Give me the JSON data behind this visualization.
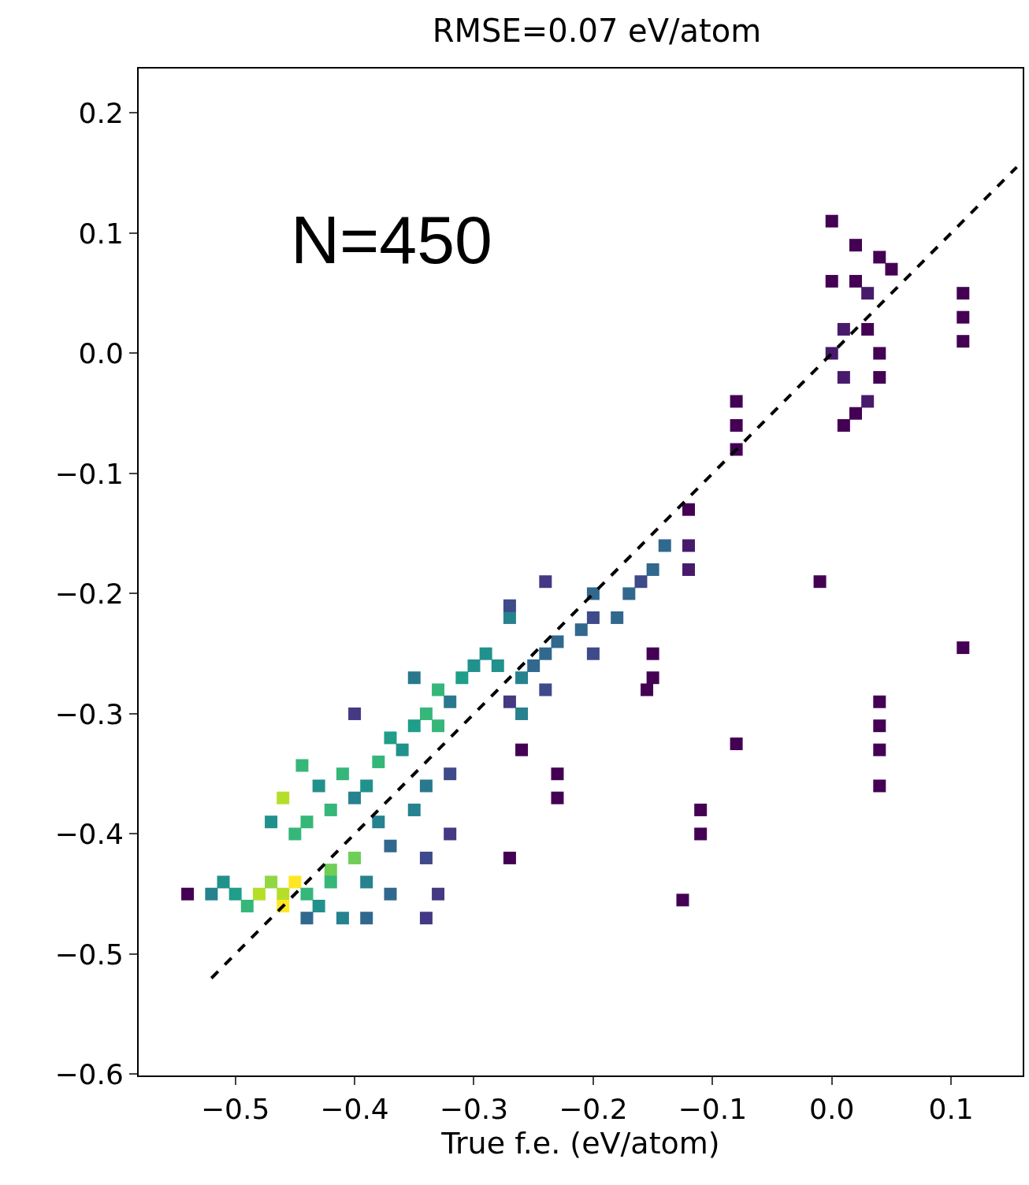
{
  "chart_data": {
    "type": "scatter",
    "title": "RMSE=0.07 eV/atom",
    "xlabel": "True f.e. (eV/atom)",
    "annotations": [
      "N=450"
    ],
    "xlim": [
      -0.581,
      0.16
    ],
    "ylim": [
      -0.601,
      0.237
    ],
    "xticks": [
      -0.5,
      -0.4,
      -0.3,
      -0.2,
      -0.1,
      {
        "value": 0,
        "label": "0.0"
      },
      0.1
    ],
    "yticks": [
      -0.6,
      -0.5,
      -0.4,
      -0.3,
      -0.2,
      -0.1,
      {
        "value": 0,
        "label": "0.0"
      },
      0.1,
      0.2
    ],
    "grid": false,
    "series": [
      {
        "marker": "square",
        "x": [
          0.0,
          0.0,
          0.02,
          0.02,
          0.04,
          0.05,
          0.03,
          0.0,
          0.01,
          0.01,
          0.03,
          0.04,
          0.03,
          0.02,
          0.04,
          0.01,
          0.11,
          0.11,
          0.11,
          -0.08,
          -0.08,
          -0.08,
          -0.12,
          -0.12,
          -0.12,
          -0.01,
          0.11,
          0.04,
          0.04,
          0.04,
          0.04,
          -0.08,
          -0.11,
          -0.11,
          -0.125,
          -0.27,
          -0.26,
          -0.23,
          -0.23,
          -0.15,
          -0.15,
          -0.155,
          -0.14,
          -0.15,
          -0.16,
          -0.17,
          -0.18,
          -0.2,
          -0.2,
          -0.21,
          -0.2,
          -0.24,
          -0.24,
          -0.25,
          -0.23,
          -0.26,
          -0.24,
          -0.27,
          -0.27,
          -0.26,
          -0.28,
          -0.29,
          -0.27,
          -0.3,
          -0.31,
          -0.32,
          -0.33,
          -0.34,
          -0.35,
          -0.36,
          -0.37,
          -0.35,
          -0.33,
          -0.38,
          -0.39,
          -0.4,
          -0.41,
          -0.42,
          -0.43,
          -0.44,
          -0.4,
          -0.38,
          -0.37,
          -0.35,
          -0.34,
          -0.32,
          -0.32,
          -0.34,
          -0.33,
          -0.34,
          -0.37,
          -0.39,
          -0.39,
          -0.4,
          -0.42,
          -0.45,
          -0.47,
          -0.46,
          -0.47,
          -0.46,
          -0.45,
          -0.48,
          -0.5,
          -0.52,
          -0.51,
          -0.54,
          -0.44,
          -0.43,
          -0.41,
          -0.42,
          -0.44,
          -0.49,
          -0.46,
          -0.444
        ],
        "values": [
          0.11,
          0.06,
          0.09,
          0.06,
          0.08,
          0.07,
          0.05,
          0.0,
          -0.02,
          -0.06,
          -0.04,
          0.0,
          0.02,
          -0.05,
          -0.02,
          0.02,
          0.05,
          0.03,
          0.01,
          -0.04,
          -0.06,
          -0.08,
          -0.13,
          -0.16,
          -0.18,
          -0.19,
          -0.245,
          -0.29,
          -0.31,
          -0.33,
          -0.36,
          -0.325,
          -0.38,
          -0.4,
          -0.455,
          -0.42,
          -0.33,
          -0.35,
          -0.37,
          -0.25,
          -0.27,
          -0.28,
          -0.16,
          -0.18,
          -0.19,
          -0.2,
          -0.22,
          -0.2,
          -0.22,
          -0.23,
          -0.25,
          -0.19,
          -0.25,
          -0.26,
          -0.24,
          -0.27,
          -0.28,
          -0.29,
          -0.22,
          -0.3,
          -0.26,
          -0.25,
          -0.21,
          -0.26,
          -0.27,
          -0.29,
          -0.28,
          -0.3,
          -0.31,
          -0.33,
          -0.32,
          -0.27,
          -0.31,
          -0.34,
          -0.36,
          -0.37,
          -0.35,
          -0.38,
          -0.36,
          -0.39,
          -0.3,
          -0.39,
          -0.41,
          -0.38,
          -0.36,
          -0.35,
          -0.4,
          -0.42,
          -0.45,
          -0.47,
          -0.45,
          -0.47,
          -0.44,
          -0.42,
          -0.43,
          -0.4,
          -0.39,
          -0.37,
          -0.44,
          -0.45,
          -0.44,
          -0.45,
          -0.45,
          -0.45,
          -0.44,
          -0.45,
          -0.45,
          -0.46,
          -0.47,
          -0.44,
          -0.47,
          -0.46,
          -0.46,
          -0.343
        ],
        "colors": [
          "#440154",
          "#440154",
          "#440154",
          "#440154",
          "#440154",
          "#440154",
          "#481a6c",
          "#481a6c",
          "#481a6c",
          "#440154",
          "#481a6c",
          "#440154",
          "#440154",
          "#440154",
          "#440154",
          "#481a6c",
          "#440154",
          "#440154",
          "#440154",
          "#440154",
          "#440154",
          "#440154",
          "#440154",
          "#481a6c",
          "#481a6c",
          "#440154",
          "#440154",
          "#440154",
          "#440154",
          "#440154",
          "#440154",
          "#440154",
          "#440154",
          "#440154",
          "#440154",
          "#440154",
          "#440154",
          "#440154",
          "#440154",
          "#440154",
          "#440154",
          "#440154",
          "#31688e",
          "#31688e",
          "#3e4a89",
          "#31688e",
          "#31688e",
          "#31688e",
          "#3e4a89",
          "#31688e",
          "#3e4a89",
          "#443983",
          "#31688e",
          "#31688e",
          "#31688e",
          "#26828e",
          "#3e4a89",
          "#443983",
          "#26828e",
          "#26828e",
          "#21918c",
          "#21918c",
          "#3e4a89",
          "#21918c",
          "#1f9e89",
          "#2a788e",
          "#35b779",
          "#35b779",
          "#1f9e89",
          "#21918c",
          "#1f9e89",
          "#2a788e",
          "#35b779",
          "#35b779",
          "#21918c",
          "#26828e",
          "#35b779",
          "#35b779",
          "#21918c",
          "#35b779",
          "#443983",
          "#26828e",
          "#31688e",
          "#26828e",
          "#2a788e",
          "#3e4a89",
          "#443983",
          "#3e4a89",
          "#443983",
          "#443983",
          "#31688e",
          "#31688e",
          "#26828e",
          "#6ece58",
          "#6ece58",
          "#35b779",
          "#21918c",
          "#b5de2b",
          "#90d743",
          "#b5de2b",
          "#fde725",
          "#b5de2b",
          "#1f9e89",
          "#26828e",
          "#21918c",
          "#440154",
          "#35b779",
          "#21918c",
          "#26828e",
          "#35b779",
          "#31688e",
          "#35b779",
          "#fde725",
          "#35b779"
        ]
      },
      {
        "type": "line",
        "x": [
          -0.52,
          0.155
        ],
        "values": [
          -0.52,
          0.155
        ],
        "color": "#000000",
        "line_style": "dashed"
      }
    ]
  }
}
